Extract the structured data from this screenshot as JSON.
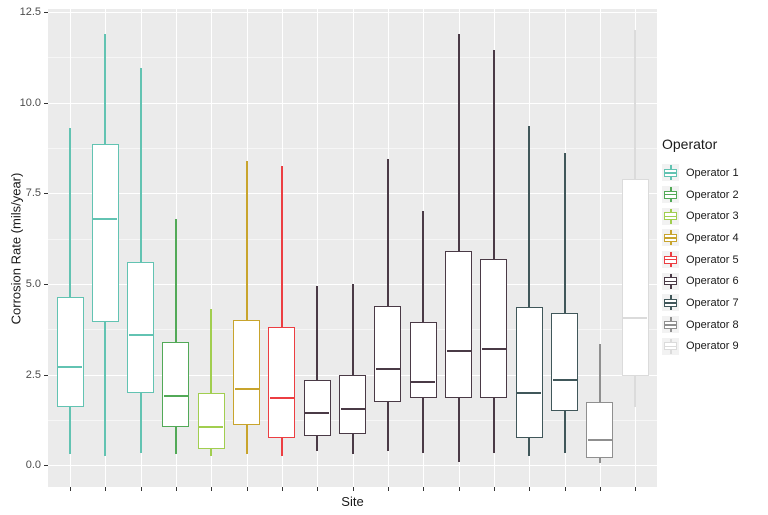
{
  "y_axis": {
    "title": "Corrosion Rate (mils/year)",
    "tick_labels": [
      "0.0",
      "2.5",
      "5.0",
      "7.5",
      "10.0",
      "12.5"
    ],
    "tick_values": [
      0,
      2.5,
      5,
      7.5,
      10,
      12.5
    ],
    "minor_tick_values": [
      1.25,
      3.75,
      6.25,
      8.75,
      11.25
    ],
    "range": [
      -0.6,
      12.58
    ]
  },
  "x_axis": {
    "title": "Site",
    "n_categories": 17,
    "tick_labels_visible": false
  },
  "legend": {
    "title": "Operator",
    "entries": [
      {
        "label": "Operator 1",
        "color": "#62C3B2"
      },
      {
        "label": "Operator 2",
        "color": "#52A957"
      },
      {
        "label": "Operator 3",
        "color": "#A1CE4F"
      },
      {
        "label": "Operator 4",
        "color": "#C8A42D"
      },
      {
        "label": "Operator 5",
        "color": "#EC3E42"
      },
      {
        "label": "Operator 6",
        "color": "#4A3A46"
      },
      {
        "label": "Operator 7",
        "color": "#40575A"
      },
      {
        "label": "Operator 8",
        "color": "#8F8F8F"
      },
      {
        "label": "Operator 9",
        "color": "#DBDBDB"
      }
    ]
  },
  "colors": {
    "panel_bg": "#EBEBEB",
    "grid": "#FFFFFF",
    "tick_mark": "#333333",
    "tick_label": "#4D4D4D",
    "axis_title": "#1A1A1A",
    "box_fill": "#FFFFFF",
    "legend_key_bg": "#F2F2F2"
  },
  "chart_data": {
    "type": "boxplot",
    "title": "",
    "xlabel": "Site",
    "ylabel": "Corrosion Rate (mils/year)",
    "ylim": [
      -0.6,
      12.58
    ],
    "grid": true,
    "legend_position": "right",
    "note": "17 unlabeled sites on x-axis, boxes colored by operator; no outlier points drawn",
    "boxes": [
      {
        "site": 1,
        "operator": "Operator 1",
        "whisker_low": 0.3,
        "q1": 1.6,
        "median": 2.7,
        "q3": 4.65,
        "whisker_high": 9.3
      },
      {
        "site": 2,
        "operator": "Operator 1",
        "whisker_low": 0.25,
        "q1": 3.95,
        "median": 6.8,
        "q3": 8.85,
        "whisker_high": 11.9
      },
      {
        "site": 3,
        "operator": "Operator 1",
        "whisker_low": 0.35,
        "q1": 2.0,
        "median": 3.6,
        "q3": 5.6,
        "whisker_high": 10.95
      },
      {
        "site": 4,
        "operator": "Operator 2",
        "whisker_low": 0.3,
        "q1": 1.05,
        "median": 1.9,
        "q3": 3.4,
        "whisker_high": 6.8
      },
      {
        "site": 5,
        "operator": "Operator 3",
        "whisker_low": 0.25,
        "q1": 0.45,
        "median": 1.05,
        "q3": 2.0,
        "whisker_high": 4.3
      },
      {
        "site": 6,
        "operator": "Operator 4",
        "whisker_low": 0.3,
        "q1": 1.1,
        "median": 2.1,
        "q3": 4.0,
        "whisker_high": 8.4
      },
      {
        "site": 7,
        "operator": "Operator 5",
        "whisker_low": 0.25,
        "q1": 0.75,
        "median": 1.85,
        "q3": 3.8,
        "whisker_high": 8.25
      },
      {
        "site": 8,
        "operator": "Operator 6",
        "whisker_low": 0.4,
        "q1": 0.8,
        "median": 1.45,
        "q3": 2.35,
        "whisker_high": 4.95
      },
      {
        "site": 9,
        "operator": "Operator 6",
        "whisker_low": 0.3,
        "q1": 0.85,
        "median": 1.55,
        "q3": 2.5,
        "whisker_high": 5.0
      },
      {
        "site": 10,
        "operator": "Operator 6",
        "whisker_low": 0.4,
        "q1": 1.75,
        "median": 2.65,
        "q3": 4.4,
        "whisker_high": 8.45
      },
      {
        "site": 11,
        "operator": "Operator 6",
        "whisker_low": 0.35,
        "q1": 1.85,
        "median": 2.3,
        "q3": 3.95,
        "whisker_high": 7.0
      },
      {
        "site": 12,
        "operator": "Operator 6",
        "whisker_low": 0.1,
        "q1": 1.85,
        "median": 3.15,
        "q3": 5.9,
        "whisker_high": 11.9
      },
      {
        "site": 13,
        "operator": "Operator 6",
        "whisker_low": 0.35,
        "q1": 1.85,
        "median": 3.2,
        "q3": 5.7,
        "whisker_high": 11.45
      },
      {
        "site": 14,
        "operator": "Operator 7",
        "whisker_low": 0.25,
        "q1": 0.75,
        "median": 2.0,
        "q3": 4.35,
        "whisker_high": 9.35
      },
      {
        "site": 15,
        "operator": "Operator 7",
        "whisker_low": 0.35,
        "q1": 1.5,
        "median": 2.35,
        "q3": 4.2,
        "whisker_high": 8.6
      },
      {
        "site": 16,
        "operator": "Operator 8",
        "whisker_low": 0.05,
        "q1": 0.2,
        "median": 0.7,
        "q3": 1.75,
        "whisker_high": 3.35
      },
      {
        "site": 17,
        "operator": "Operator 9",
        "whisker_low": 1.6,
        "q1": 2.45,
        "median": 4.05,
        "q3": 7.9,
        "whisker_high": 12.0
      }
    ]
  }
}
